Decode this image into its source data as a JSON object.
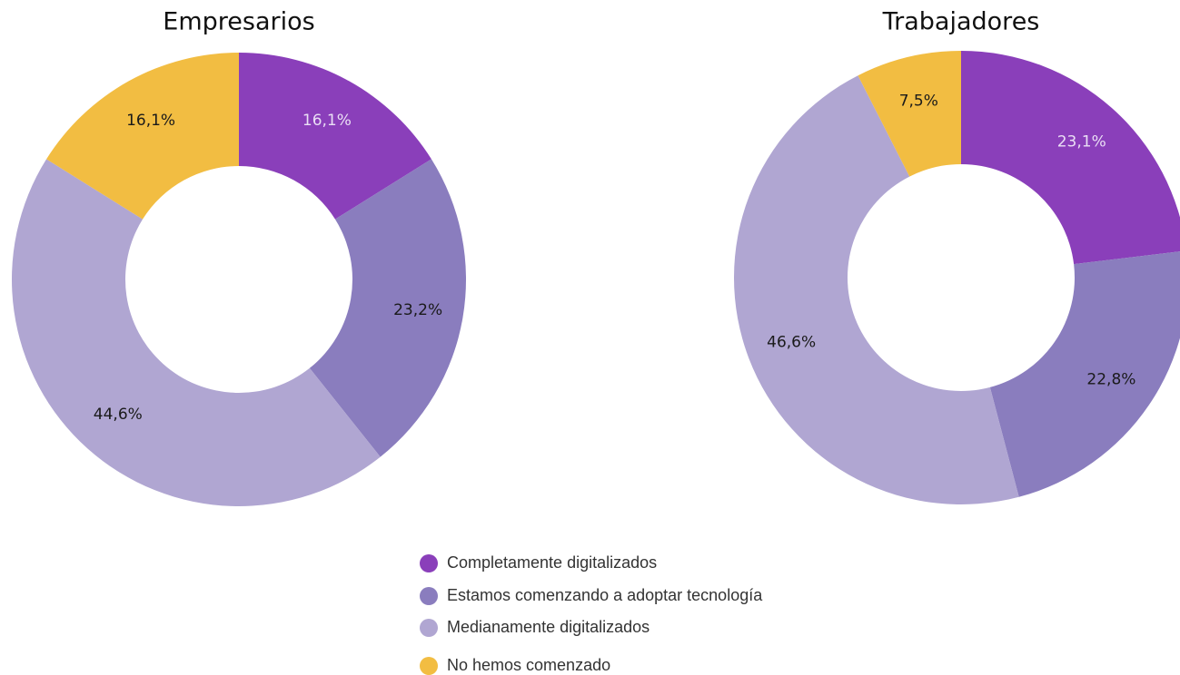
{
  "chart_data": [
    {
      "type": "pie",
      "title": "Empresarios",
      "values": [
        16.1,
        23.2,
        44.6,
        16.1
      ],
      "value_labels": [
        "16,1%",
        "23,2%",
        "44,6%",
        "16,1%"
      ]
    },
    {
      "type": "pie",
      "title": "Trabajadores",
      "values": [
        23.1,
        22.8,
        46.6,
        7.5
      ],
      "value_labels": [
        "23,1%",
        "22,8%",
        "46,6%",
        "7,5%"
      ]
    }
  ],
  "legend": {
    "labels": [
      "Completamente digitalizados",
      "Estamos comenzando a adoptar tecnología",
      "Medianamente digitalizados",
      "No hemos comenzado"
    ],
    "colors": [
      "#8a3fba",
      "#8a7dbe",
      "#b0a6d2",
      "#f2bd42"
    ]
  }
}
